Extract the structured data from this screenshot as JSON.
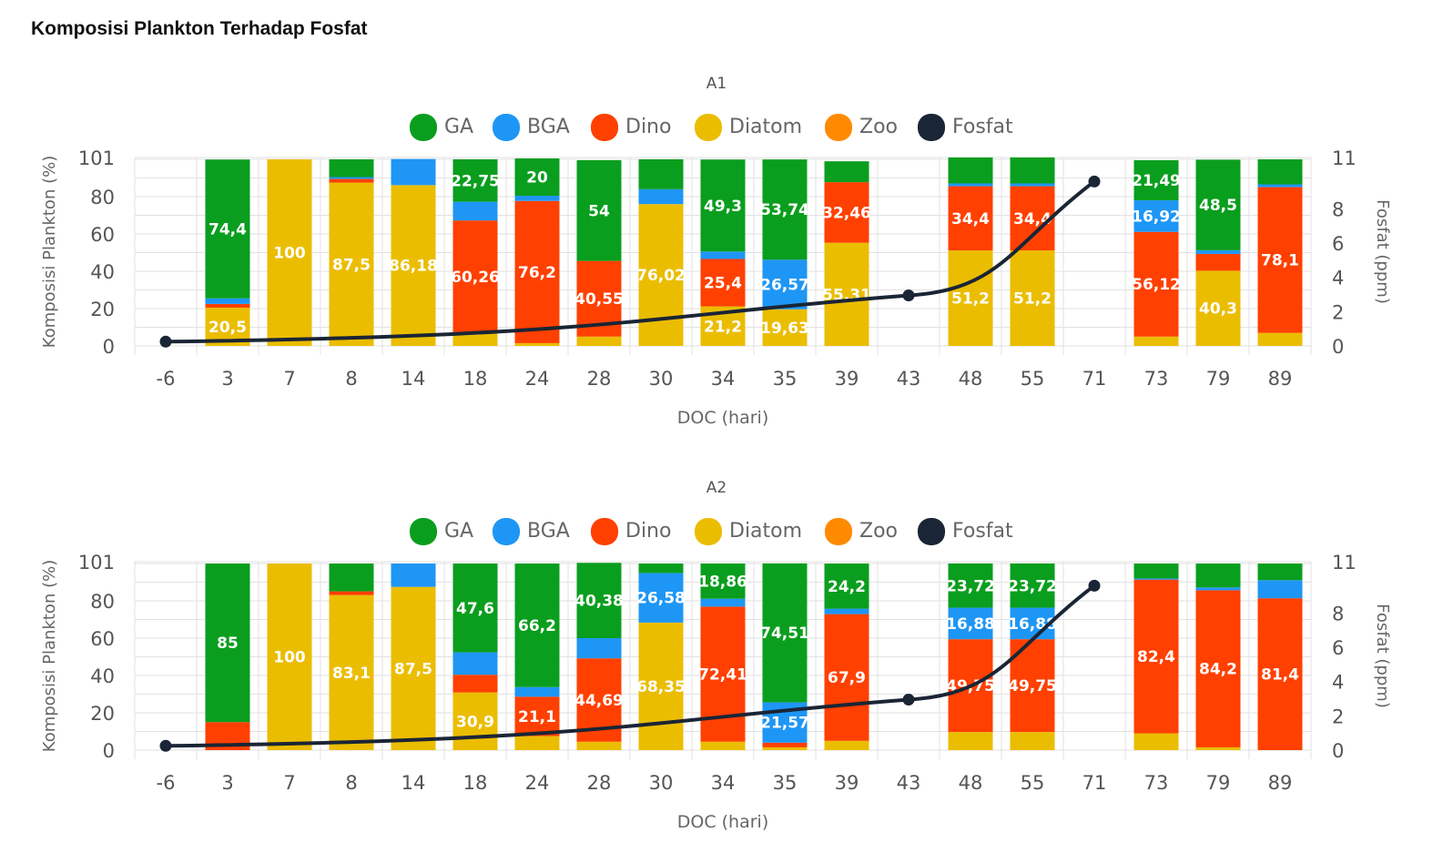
{
  "page": {
    "title": "Komposisi Plankton Terhadap Fosfat"
  },
  "colors": {
    "GA": "#0a9e1e",
    "BGA": "#1e96f5",
    "Dino": "#ff4000",
    "Diatom": "#ebbd00",
    "Zoo": "#ff8a00",
    "Fosfat": "#1a2535"
  },
  "chart_data": [
    {
      "type": "bar",
      "stacked": true,
      "title": "A1",
      "xlabel": "DOC (hari)",
      "ylabel": "Komposisi Plankton (%)",
      "ylabel_right": "Fosfat (ppm)",
      "ylim": [
        0,
        101
      ],
      "y_ticks": [
        "0",
        "20",
        "40",
        "60",
        "80",
        "101"
      ],
      "ylim_right": [
        0,
        11
      ],
      "y_ticks_right": [
        "0",
        "2",
        "4",
        "6",
        "8",
        "11"
      ],
      "legend": [
        "GA",
        "BGA",
        "Dino",
        "Diatom",
        "Zoo",
        "Fosfat"
      ],
      "legend_position": "top-center",
      "categories": [
        "-6",
        "3",
        "7",
        "8",
        "14",
        "18",
        "24",
        "28",
        "30",
        "34",
        "35",
        "39",
        "43",
        "48",
        "55",
        "71",
        "73",
        "79",
        "89"
      ],
      "series": [
        {
          "name": "Diatom",
          "values": [
            0,
            20.5,
            100,
            87.5,
            86.18,
            7,
            1.5,
            5,
            76.02,
            21.2,
            19.63,
            55.31,
            0,
            51.2,
            51.2,
            0,
            5,
            40.3,
            7
          ],
          "labels": [
            "",
            "20,5",
            "100",
            "87,5",
            "86,18",
            "",
            "",
            "",
            "76,02",
            "21,2",
            "19,63",
            "55,31",
            "",
            "51,2",
            "51,2",
            "",
            "",
            "40,3",
            ""
          ]
        },
        {
          "name": "Dino",
          "values": [
            0,
            2,
            0,
            2,
            0,
            60.26,
            76.2,
            40.55,
            0,
            25.4,
            0,
            32.46,
            0,
            34.4,
            34.4,
            0,
            56.12,
            9,
            78.1
          ],
          "labels": [
            "",
            "",
            "",
            "",
            "",
            "60,26",
            "76,2",
            "40,55",
            "",
            "25,4",
            "",
            "32,46",
            "",
            "34,4",
            "34,4",
            "",
            "56,12",
            "",
            "78,1"
          ]
        },
        {
          "name": "BGA",
          "values": [
            0,
            3,
            0,
            1,
            14,
            10,
            2.8,
            0,
            8,
            4,
            26.57,
            0,
            0,
            1.5,
            1.5,
            0,
            16.92,
            2,
            1.5
          ],
          "labels": [
            "",
            "",
            "",
            "",
            "",
            "",
            "",
            "",
            "",
            "",
            "26,57",
            "",
            "",
            "",
            "",
            "",
            "16,92",
            "",
            ""
          ]
        },
        {
          "name": "Zoo",
          "values": [
            0,
            0,
            0,
            0,
            0,
            0,
            0,
            0,
            0,
            0,
            0,
            0,
            0,
            0,
            0,
            0,
            0,
            0,
            0
          ],
          "labels": [
            "",
            "",
            "",
            "",
            "",
            "",
            "",
            "",
            "",
            "",
            "",
            "",
            "",
            "",
            "",
            "",
            "",
            "",
            ""
          ]
        },
        {
          "name": "GA",
          "values": [
            0,
            74.4,
            0,
            9.5,
            0,
            22.75,
            20,
            54,
            16,
            49.3,
            53.74,
            11.2,
            0,
            13.9,
            13.9,
            0,
            21.49,
            48.5,
            13.4
          ],
          "labels": [
            "",
            "74,4",
            "",
            "",
            "",
            "22,75",
            "20",
            "54",
            "",
            "49,3",
            "53,74",
            "",
            "",
            "",
            "",
            "",
            "21,49",
            "48,5",
            ""
          ]
        }
      ],
      "fosfat": [
        0.25,
        null,
        null,
        null,
        null,
        null,
        null,
        null,
        null,
        null,
        null,
        null,
        2.95,
        null,
        null,
        9.6,
        null,
        null,
        null
      ]
    },
    {
      "type": "bar",
      "stacked": true,
      "title": "A2",
      "xlabel": "DOC (hari)",
      "ylabel": "Komposisi Plankton (%)",
      "ylabel_right": "Fosfat (ppm)",
      "ylim": [
        0,
        101
      ],
      "y_ticks": [
        "0",
        "20",
        "40",
        "60",
        "80",
        "101"
      ],
      "ylim_right": [
        0,
        11
      ],
      "y_ticks_right": [
        "0",
        "2",
        "4",
        "6",
        "8",
        "11"
      ],
      "legend": [
        "GA",
        "BGA",
        "Dino",
        "Diatom",
        "Zoo",
        "Fosfat"
      ],
      "legend_position": "top-center",
      "categories": [
        "-6",
        "3",
        "7",
        "8",
        "14",
        "18",
        "24",
        "28",
        "30",
        "34",
        "35",
        "39",
        "43",
        "48",
        "55",
        "71",
        "73",
        "79",
        "89"
      ],
      "series": [
        {
          "name": "Diatom",
          "values": [
            0,
            0,
            100,
            83.1,
            87.5,
            30.9,
            7.5,
            4.5,
            68.35,
            4.5,
            1.5,
            5,
            0,
            9.7,
            9.7,
            0,
            9,
            1.5,
            0
          ],
          "labels": [
            "",
            "",
            "100",
            "83,1",
            "87,5",
            "30,9",
            "",
            "",
            "68,35",
            "",
            "",
            "",
            "",
            "",
            "",
            "",
            "",
            "",
            ""
          ]
        },
        {
          "name": "Dino",
          "values": [
            0,
            15,
            0,
            2,
            0,
            9.5,
            21.1,
            44.69,
            0,
            72.41,
            2.5,
            67.9,
            0,
            49.75,
            49.75,
            0,
            82.4,
            84.2,
            81.4
          ],
          "labels": [
            "",
            "",
            "",
            "",
            "",
            "",
            "21,1",
            "44,69",
            "",
            "72,41",
            "",
            "67,9",
            "",
            "49,75",
            "49,75",
            "",
            "82,4",
            "84,2",
            "81,4"
          ]
        },
        {
          "name": "BGA",
          "values": [
            0,
            0,
            0,
            0,
            12.5,
            12,
            5.2,
            10.81,
            26.58,
            4.23,
            21.57,
            2.9,
            0,
            16.88,
            16.88,
            0,
            0.6,
            1.5,
            9.7
          ],
          "labels": [
            "",
            "",
            "",
            "",
            "",
            "",
            "",
            "",
            "26,58",
            "",
            "21,57",
            "",
            "",
            "16,88",
            "16,88",
            "",
            "",
            "",
            ""
          ]
        },
        {
          "name": "Zoo",
          "values": [
            0,
            0,
            0,
            0,
            0,
            0,
            0,
            0,
            0,
            0,
            0,
            0,
            0,
            0,
            0,
            0,
            0,
            0,
            0
          ],
          "labels": [
            "",
            "",
            "",
            "",
            "",
            "",
            "",
            "",
            "",
            "",
            "",
            "",
            "",
            "",
            "",
            "",
            "",
            "",
            ""
          ]
        },
        {
          "name": "GA",
          "values": [
            0,
            85,
            0,
            14.9,
            0,
            47.6,
            66.2,
            40.38,
            5.07,
            18.86,
            74.51,
            24.2,
            0,
            23.72,
            23.72,
            0,
            8,
            12.8,
            8.9
          ],
          "labels": [
            "",
            "85",
            "",
            "",
            "",
            "47,6",
            "66,2",
            "40,38",
            "",
            "18,86",
            "74,51",
            "24,2",
            "",
            "23,72",
            "23,72",
            "",
            "",
            "",
            ""
          ]
        }
      ],
      "fosfat": [
        0.25,
        null,
        null,
        null,
        null,
        null,
        null,
        null,
        null,
        null,
        null,
        null,
        2.95,
        null,
        null,
        9.6,
        null,
        null,
        null
      ]
    }
  ]
}
